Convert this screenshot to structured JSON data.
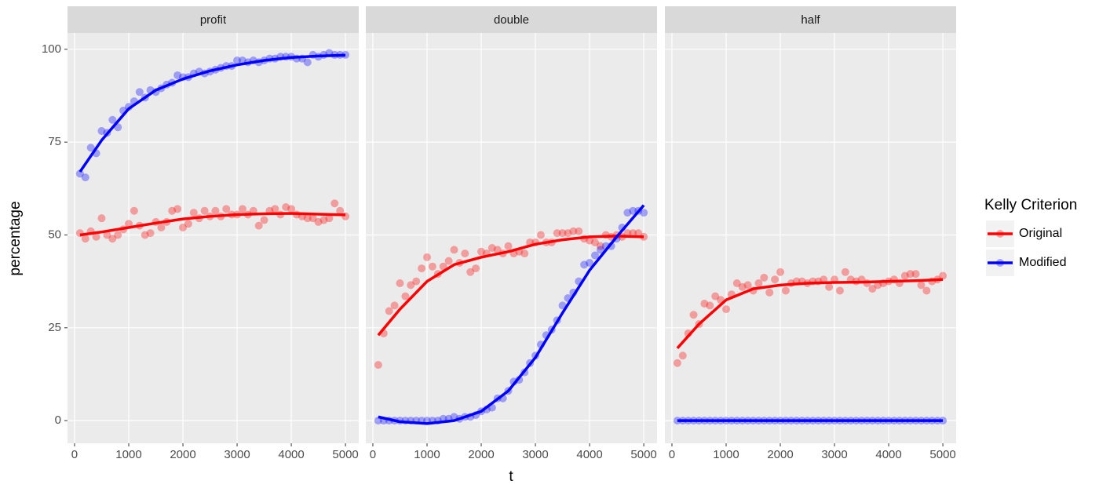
{
  "chart_data": {
    "type": "scatter",
    "x_label": "t",
    "y_label": "percentage",
    "legend_title": "Kelly Criterion",
    "x": [
      100,
      200,
      300,
      400,
      500,
      600,
      700,
      800,
      900,
      1000,
      1100,
      1200,
      1300,
      1400,
      1500,
      1600,
      1700,
      1800,
      1900,
      2000,
      2100,
      2200,
      2300,
      2400,
      2500,
      2600,
      2700,
      2800,
      2900,
      3000,
      3100,
      3200,
      3300,
      3400,
      3500,
      3600,
      3700,
      3800,
      3900,
      4000,
      4100,
      4200,
      4300,
      4400,
      4500,
      4600,
      4700,
      4800,
      4900,
      5000
    ],
    "smooth_x": [
      100,
      500,
      1000,
      1500,
      2000,
      2500,
      3000,
      3500,
      4000,
      4500,
      5000
    ],
    "xlim": [
      -130,
      5245
    ],
    "xticks": [
      0,
      1000,
      2000,
      3000,
      4000,
      5000
    ],
    "ylim": [
      -6.1,
      104.4
    ],
    "yticks": [
      0,
      25,
      50,
      75,
      100
    ],
    "panels": [
      {
        "title": "profit",
        "series": [
          {
            "name": "Original",
            "color": "#ff0000",
            "values": [
              50.5,
              49,
              51,
              49.5,
              54.5,
              50,
              49,
              50,
              51.5,
              53,
              56.5,
              52.5,
              50,
              50.5,
              53.5,
              52,
              53.5,
              56.5,
              57,
              52,
              53,
              56,
              54.5,
              56.5,
              55,
              56.5,
              55,
              57,
              55.5,
              55.5,
              57,
              55.5,
              56.5,
              52.5,
              54,
              56.5,
              57,
              55.5,
              57.5,
              57,
              55.5,
              55,
              54.5,
              54.5,
              53.5,
              54,
              54.5,
              58.5,
              56.5,
              55
            ],
            "smooth_values": [
              50,
              50.8,
              52,
              53.2,
              54.3,
              55,
              55.5,
              55.7,
              55.8,
              55.6,
              55.4
            ]
          },
          {
            "name": "Modified",
            "color": "#0000ff",
            "values": [
              66.5,
              65.5,
              73.5,
              72,
              78,
              77.5,
              81,
              79,
              83.5,
              84.5,
              86,
              88.5,
              87,
              89,
              88.5,
              89.5,
              90.5,
              91,
              93,
              92.5,
              92.5,
              93.5,
              94,
              93.5,
              94,
              94.5,
              95,
              95.5,
              95.5,
              97,
              97,
              96.5,
              97,
              96.5,
              97,
              97.5,
              97.5,
              98,
              98,
              98,
              97.5,
              97.5,
              96.5,
              98.5,
              98,
              98.5,
              99,
              98.5,
              98.5,
              98.5
            ],
            "smooth_values": [
              67,
              75.5,
              84,
              89,
              92,
              94.2,
              95.8,
              97,
              97.8,
              98.2,
              98.4
            ]
          }
        ]
      },
      {
        "title": "double",
        "series": [
          {
            "name": "Original",
            "color": "#ff0000",
            "values": [
              15,
              23.5,
              29.5,
              31,
              37,
              33.5,
              36.5,
              37.5,
              41,
              44,
              41.5,
              39.5,
              41.5,
              43,
              46,
              42.5,
              45,
              40,
              41,
              45.5,
              45,
              46.5,
              46,
              45,
              47,
              45,
              45.5,
              45,
              48,
              48,
              50,
              48,
              48,
              50.5,
              50.5,
              50.5,
              51,
              51,
              49,
              48.5,
              48,
              47,
              50,
              49.5,
              50,
              49.5,
              50.5,
              50.5,
              50.5,
              49.5
            ],
            "smooth_values": [
              23,
              30,
              37.5,
              42,
              44,
              45.5,
              47.5,
              48.7,
              49.5,
              49.7,
              49.5
            ]
          },
          {
            "name": "Modified",
            "color": "#0000ff",
            "values": [
              0,
              0,
              0,
              0,
              0,
              0,
              0,
              0,
              0,
              0,
              0,
              0,
              0.5,
              0.5,
              1,
              0.5,
              1,
              1,
              1.5,
              2.5,
              3,
              3.5,
              6,
              6,
              8,
              10.5,
              11,
              13,
              15.5,
              17.5,
              20.5,
              23,
              24.5,
              27,
              31,
              33,
              34.5,
              37.5,
              42,
              42.5,
              44.5,
              46,
              47,
              47,
              49,
              52,
              56,
              56.5,
              56.5,
              56
            ],
            "smooth_values": [
              1,
              -0.3,
              -0.8,
              0,
              2.5,
              8,
              17,
              29,
              40.5,
              49.5,
              58
            ]
          }
        ]
      },
      {
        "title": "half",
        "series": [
          {
            "name": "Original",
            "color": "#ff0000",
            "values": [
              15.5,
              17.5,
              23.5,
              28.5,
              26,
              31.5,
              31,
              33.5,
              32.5,
              30,
              34,
              37,
              36,
              36.5,
              35,
              37,
              38.5,
              34.5,
              38,
              40,
              35,
              37,
              37.5,
              37.5,
              37,
              37.5,
              37.5,
              38,
              36,
              38,
              35,
              40,
              38,
              37.5,
              38,
              37,
              35.5,
              36.5,
              37,
              37.5,
              38,
              37,
              39,
              39.5,
              39.5,
              36.5,
              35,
              37.5,
              38,
              39
            ],
            "smooth_values": [
              19.5,
              26,
              32.5,
              35.5,
              36.5,
              37,
              37.2,
              37.3,
              37.5,
              37.7,
              38
            ]
          },
          {
            "name": "Modified",
            "color": "#0000ff",
            "values": [
              0,
              0,
              0,
              0,
              0,
              0,
              0,
              0,
              0,
              0,
              0,
              0,
              0,
              0,
              0,
              0,
              0,
              0,
              0,
              0,
              0,
              0,
              0,
              0,
              0,
              0,
              0,
              0,
              0,
              0,
              0,
              0,
              0,
              0,
              0,
              0,
              0,
              0,
              0,
              0,
              0,
              0,
              0,
              0,
              0,
              0,
              0,
              0,
              0,
              0
            ],
            "smooth_values": [
              0,
              0,
              0,
              0,
              0,
              0,
              0,
              0,
              0,
              0,
              0
            ]
          }
        ]
      }
    ]
  }
}
